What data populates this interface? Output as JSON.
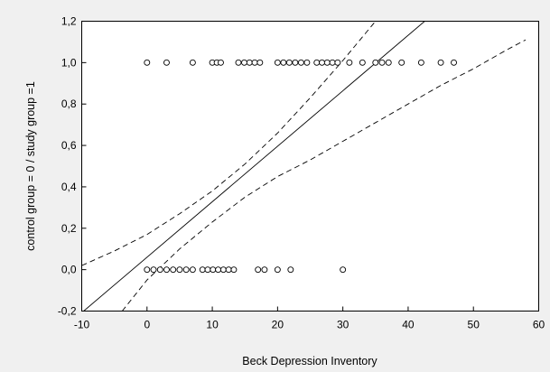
{
  "chart_data": {
    "type": "scatter",
    "title": "",
    "xlabel": "Beck Depression Inventory",
    "ylabel": "control group = 0 /  study group =1",
    "xlim": [
      -10,
      60
    ],
    "ylim": [
      -0.2,
      1.2
    ],
    "xticks": [
      -10,
      0,
      10,
      20,
      30,
      40,
      50,
      60
    ],
    "xtick_labels": [
      "-10",
      "0",
      "10",
      "20",
      "30",
      "40",
      "50",
      "60"
    ],
    "yticks": [
      -0.2,
      0.0,
      0.2,
      0.4,
      0.6,
      0.8,
      1.0,
      1.2
    ],
    "ytick_labels": [
      "-0,2",
      "0,0",
      "0,2",
      "0,4",
      "0,6",
      "0,8",
      "1,0",
      "1,2"
    ],
    "grid": false,
    "legend": "none",
    "series": [
      {
        "marker": "open-circle",
        "points": [
          {
            "x": 0,
            "y": 1
          },
          {
            "x": 3,
            "y": 1
          },
          {
            "x": 7,
            "y": 1
          },
          {
            "x": 10,
            "y": 1
          },
          {
            "x": 10.7,
            "y": 1
          },
          {
            "x": 11.3,
            "y": 1
          },
          {
            "x": 14,
            "y": 1
          },
          {
            "x": 14.9,
            "y": 1
          },
          {
            "x": 15.7,
            "y": 1
          },
          {
            "x": 16.5,
            "y": 1
          },
          {
            "x": 17.3,
            "y": 1
          },
          {
            "x": 20,
            "y": 1
          },
          {
            "x": 20.9,
            "y": 1
          },
          {
            "x": 21.8,
            "y": 1
          },
          {
            "x": 22.7,
            "y": 1
          },
          {
            "x": 23.6,
            "y": 1
          },
          {
            "x": 24.5,
            "y": 1
          },
          {
            "x": 26,
            "y": 1
          },
          {
            "x": 26.8,
            "y": 1
          },
          {
            "x": 27.6,
            "y": 1
          },
          {
            "x": 28.4,
            "y": 1
          },
          {
            "x": 29.2,
            "y": 1
          },
          {
            "x": 31,
            "y": 1
          },
          {
            "x": 33,
            "y": 1
          },
          {
            "x": 35,
            "y": 1
          },
          {
            "x": 36,
            "y": 1
          },
          {
            "x": 37,
            "y": 1
          },
          {
            "x": 39,
            "y": 1
          },
          {
            "x": 42,
            "y": 1
          },
          {
            "x": 45,
            "y": 1
          },
          {
            "x": 47,
            "y": 1
          },
          {
            "x": 0,
            "y": 0
          },
          {
            "x": 1,
            "y": 0
          },
          {
            "x": 2,
            "y": 0
          },
          {
            "x": 3,
            "y": 0
          },
          {
            "x": 4,
            "y": 0
          },
          {
            "x": 5,
            "y": 0
          },
          {
            "x": 6,
            "y": 0
          },
          {
            "x": 7,
            "y": 0
          },
          {
            "x": 8.5,
            "y": 0
          },
          {
            "x": 9.3,
            "y": 0
          },
          {
            "x": 10.1,
            "y": 0
          },
          {
            "x": 10.9,
            "y": 0
          },
          {
            "x": 11.7,
            "y": 0
          },
          {
            "x": 12.5,
            "y": 0
          },
          {
            "x": 13.3,
            "y": 0
          },
          {
            "x": 17,
            "y": 0
          },
          {
            "x": 18,
            "y": 0
          },
          {
            "x": 20,
            "y": 0
          },
          {
            "x": 22,
            "y": 0
          },
          {
            "x": 30,
            "y": 0
          }
        ]
      }
    ],
    "regression": {
      "style": "solid",
      "intercept": 0.06,
      "slope": 0.0268
    },
    "confidence_bands": {
      "style": "dashed",
      "upper": [
        {
          "x": -10,
          "y": 0.02
        },
        {
          "x": -5,
          "y": 0.09
        },
        {
          "x": 0,
          "y": 0.17
        },
        {
          "x": 5,
          "y": 0.27
        },
        {
          "x": 10,
          "y": 0.38
        },
        {
          "x": 15,
          "y": 0.51
        },
        {
          "x": 20,
          "y": 0.66
        },
        {
          "x": 25,
          "y": 0.83
        },
        {
          "x": 30,
          "y": 1.01
        },
        {
          "x": 35,
          "y": 1.2
        }
      ],
      "lower": [
        {
          "x": -3.8,
          "y": -0.2
        },
        {
          "x": 0,
          "y": -0.05
        },
        {
          "x": 5,
          "y": 0.1
        },
        {
          "x": 10,
          "y": 0.23
        },
        {
          "x": 15,
          "y": 0.35
        },
        {
          "x": 20,
          "y": 0.45
        },
        {
          "x": 25,
          "y": 0.53
        },
        {
          "x": 30,
          "y": 0.62
        },
        {
          "x": 35,
          "y": 0.71
        },
        {
          "x": 40,
          "y": 0.8
        },
        {
          "x": 45,
          "y": 0.89
        },
        {
          "x": 50,
          "y": 0.97
        },
        {
          "x": 55,
          "y": 1.06
        },
        {
          "x": 58,
          "y": 1.11
        }
      ]
    }
  }
}
